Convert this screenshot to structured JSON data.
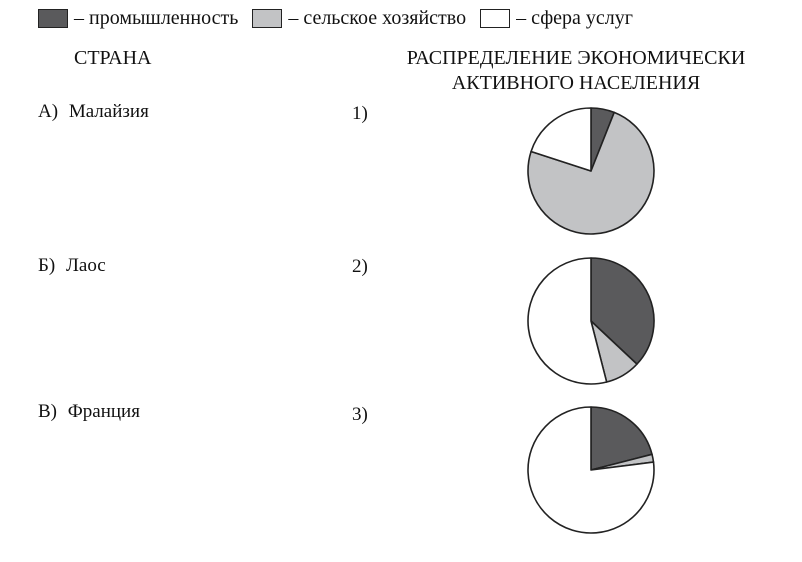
{
  "legend": {
    "items": [
      {
        "label": "– промышленность",
        "color": "#5a5a5c"
      },
      {
        "label": "– сельское хозяйство",
        "color": "#c2c3c5"
      },
      {
        "label": "– сфера услуг",
        "color": "#ffffff"
      }
    ]
  },
  "headers": {
    "country": "СТРАНА",
    "distribution_line1": "РАСПРЕДЕЛЕНИЕ ЭКОНОМИЧЕСКИ",
    "distribution_line2": "АКТИВНОГО НАСЕЛЕНИЯ"
  },
  "countries": [
    {
      "letter": "А)",
      "name": "Малайзия"
    },
    {
      "letter": "Б)",
      "name": "Лаос"
    },
    {
      "letter": "В)",
      "name": "Франция"
    }
  ],
  "chart_data": [
    {
      "type": "pie",
      "label": "1)",
      "series_order": [
        "промышленность",
        "сельское хозяйство",
        "сфера услуг"
      ],
      "values": [
        6,
        74,
        20
      ],
      "colors": [
        "#5a5a5c",
        "#c2c3c5",
        "#ffffff"
      ]
    },
    {
      "type": "pie",
      "label": "2)",
      "series_order": [
        "промышленность",
        "сельское хозяйство",
        "сфера услуг"
      ],
      "values": [
        37,
        9,
        54
      ],
      "colors": [
        "#5a5a5c",
        "#c2c3c5",
        "#ffffff"
      ]
    },
    {
      "type": "pie",
      "label": "3)",
      "series_order": [
        "промышленность",
        "сельское хозяйство",
        "сфера услуг"
      ],
      "values": [
        21,
        2,
        77
      ],
      "colors": [
        "#5a5a5c",
        "#c2c3c5",
        "#ffffff"
      ]
    }
  ]
}
